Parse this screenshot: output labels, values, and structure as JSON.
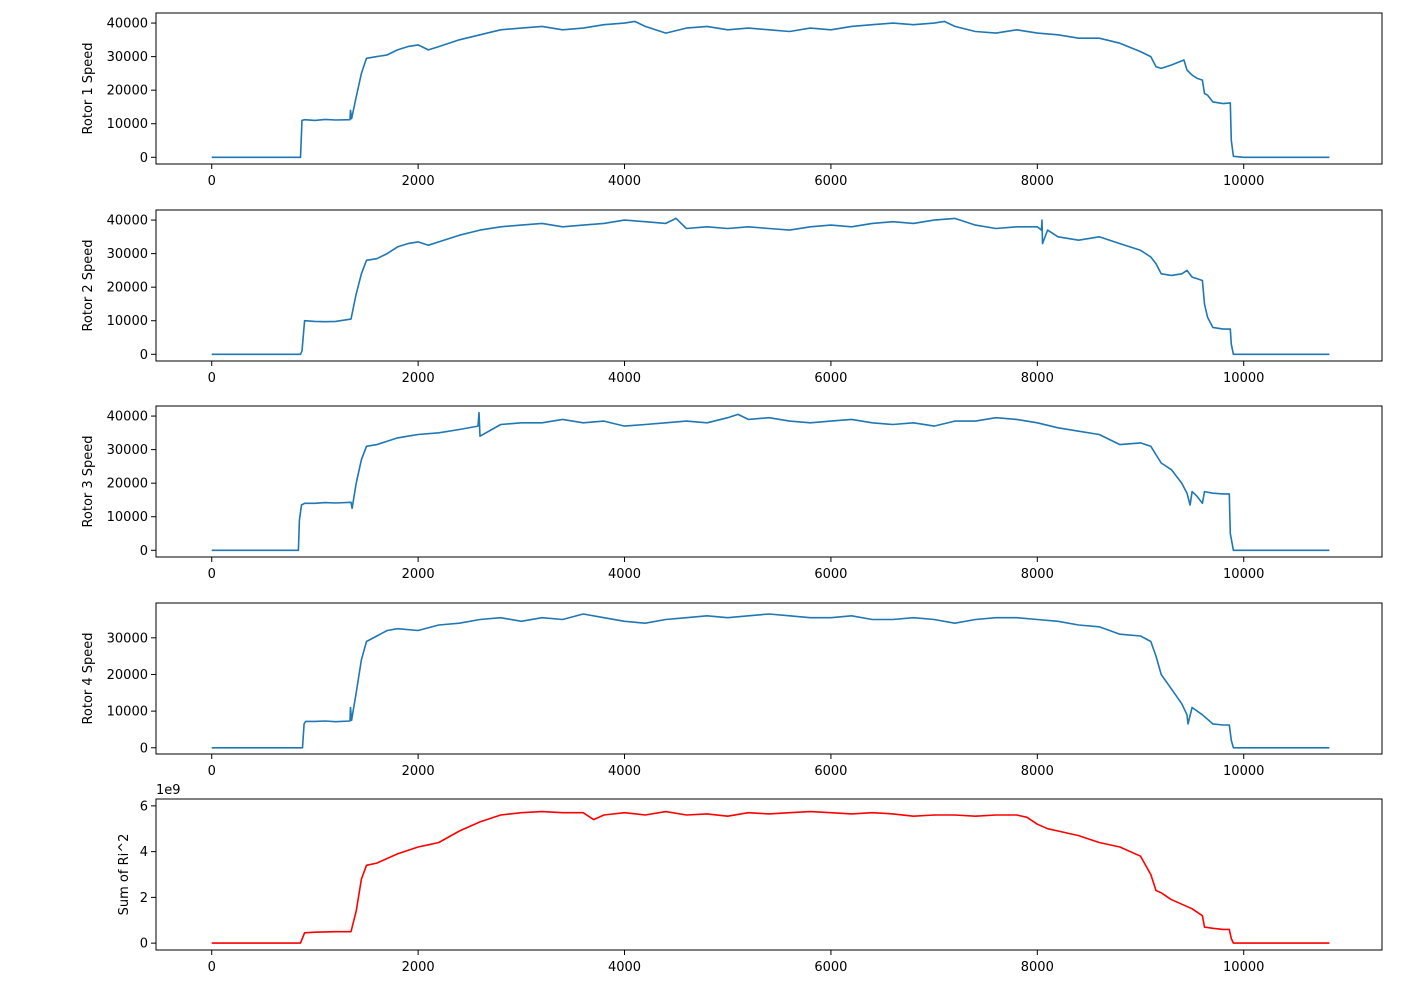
{
  "chart_data": [
    {
      "type": "line",
      "ylabel": "Rotor 1 Speed",
      "color": "#1f77b4",
      "xlim": [
        -540,
        11340
      ],
      "ylim": [
        -2000,
        43000
      ],
      "xticks": [
        0,
        2000,
        4000,
        6000,
        8000,
        10000
      ],
      "xtick_labels": [
        "0",
        "2000",
        "4000",
        "6000",
        "8000",
        "10000"
      ],
      "yticks": [
        0,
        10000,
        20000,
        30000,
        40000
      ],
      "ytick_labels": [
        "0",
        "10000",
        "20000",
        "30000",
        "40000"
      ],
      "offset_text": "",
      "series": [
        {
          "x": [
            0,
            860,
            875,
            900,
            1000,
            1100,
            1200,
            1340,
            1345,
            1355,
            1400,
            1450,
            1500,
            1600,
            1700,
            1800,
            1900,
            2000,
            2100,
            2200,
            2400,
            2600,
            2800,
            3000,
            3200,
            3400,
            3600,
            3800,
            4000,
            4100,
            4200,
            4400,
            4600,
            4800,
            5000,
            5200,
            5400,
            5600,
            5800,
            6000,
            6200,
            6400,
            6600,
            6800,
            7000,
            7100,
            7200,
            7400,
            7600,
            7800,
            8000,
            8200,
            8400,
            8600,
            8800,
            9000,
            9100,
            9150,
            9200,
            9300,
            9420,
            9450,
            9500,
            9550,
            9600,
            9620,
            9650,
            9700,
            9800,
            9870,
            9880,
            9900,
            10000,
            10200,
            10500,
            10830
          ],
          "y": [
            0,
            0,
            11000,
            11200,
            11000,
            11300,
            11100,
            11200,
            14000,
            11500,
            18000,
            25000,
            29500,
            30000,
            30500,
            32000,
            33000,
            33500,
            32000,
            33000,
            35000,
            36500,
            38000,
            38500,
            39000,
            38000,
            38500,
            39500,
            40000,
            40500,
            39000,
            37000,
            38500,
            39000,
            38000,
            38500,
            38000,
            37500,
            38500,
            38000,
            39000,
            39500,
            40000,
            39500,
            40000,
            40500,
            39000,
            37500,
            37000,
            38000,
            37000,
            36500,
            35500,
            35500,
            34000,
            31500,
            30000,
            27000,
            26500,
            27500,
            29000,
            26000,
            24500,
            23500,
            23000,
            19000,
            18500,
            16500,
            16000,
            16200,
            5000,
            300,
            0,
            0,
            0,
            0
          ]
        }
      ]
    },
    {
      "type": "line",
      "ylabel": "Rotor 2 Speed",
      "color": "#1f77b4",
      "xlim": [
        -540,
        11340
      ],
      "ylim": [
        -2000,
        43000
      ],
      "xticks": [
        0,
        2000,
        4000,
        6000,
        8000,
        10000
      ],
      "xtick_labels": [
        "0",
        "2000",
        "4000",
        "6000",
        "8000",
        "10000"
      ],
      "yticks": [
        0,
        10000,
        20000,
        30000,
        40000
      ],
      "ytick_labels": [
        "0",
        "10000",
        "20000",
        "30000",
        "40000"
      ],
      "offset_text": "",
      "series": [
        {
          "x": [
            0,
            860,
            875,
            900,
            1000,
            1100,
            1200,
            1350,
            1400,
            1450,
            1500,
            1600,
            1700,
            1800,
            1900,
            2000,
            2100,
            2200,
            2400,
            2600,
            2800,
            3000,
            3200,
            3400,
            3600,
            3800,
            4000,
            4200,
            4400,
            4500,
            4600,
            4800,
            5000,
            5200,
            5400,
            5600,
            5800,
            6000,
            6200,
            6400,
            6600,
            6800,
            7000,
            7200,
            7400,
            7600,
            7800,
            8000,
            8040,
            8045,
            8050,
            8100,
            8200,
            8400,
            8600,
            8800,
            9000,
            9100,
            9150,
            9200,
            9300,
            9400,
            9450,
            9500,
            9550,
            9600,
            9620,
            9650,
            9700,
            9800,
            9870,
            9880,
            9900,
            10000,
            10200,
            10500,
            10830
          ],
          "y": [
            0,
            0,
            1000,
            10000,
            9800,
            9700,
            9800,
            10500,
            18000,
            24000,
            28000,
            28500,
            30000,
            32000,
            33000,
            33500,
            32500,
            33500,
            35500,
            37000,
            38000,
            38500,
            39000,
            38000,
            38500,
            39000,
            40000,
            39500,
            39000,
            40500,
            37500,
            38000,
            37500,
            38000,
            37500,
            37000,
            38000,
            38500,
            38000,
            39000,
            39500,
            39000,
            40000,
            40500,
            38500,
            37500,
            38000,
            38000,
            37000,
            40000,
            33000,
            37000,
            35000,
            34000,
            35000,
            33000,
            31000,
            29000,
            27000,
            24000,
            23500,
            24000,
            25000,
            23000,
            22500,
            22000,
            15000,
            11000,
            8000,
            7500,
            7500,
            3000,
            0,
            0,
            0,
            0,
            0
          ]
        }
      ]
    },
    {
      "type": "line",
      "ylabel": "Rotor 3 Speed",
      "color": "#1f77b4",
      "xlim": [
        -540,
        11340
      ],
      "ylim": [
        -2000,
        43000
      ],
      "xticks": [
        0,
        2000,
        4000,
        6000,
        8000,
        10000
      ],
      "xtick_labels": [
        "0",
        "2000",
        "4000",
        "6000",
        "8000",
        "10000"
      ],
      "yticks": [
        0,
        10000,
        20000,
        30000,
        40000
      ],
      "ytick_labels": [
        "0",
        "10000",
        "20000",
        "30000",
        "40000"
      ],
      "offset_text": "",
      "series": [
        {
          "x": [
            0,
            840,
            850,
            870,
            900,
            1000,
            1100,
            1200,
            1350,
            1360,
            1400,
            1450,
            1500,
            1600,
            1700,
            1800,
            1900,
            2000,
            2200,
            2400,
            2580,
            2590,
            2600,
            2800,
            3000,
            3200,
            3400,
            3600,
            3800,
            4000,
            4200,
            4400,
            4600,
            4800,
            5000,
            5100,
            5200,
            5400,
            5600,
            5800,
            6000,
            6200,
            6400,
            6600,
            6800,
            7000,
            7200,
            7400,
            7600,
            7800,
            8000,
            8200,
            8400,
            8600,
            8800,
            9000,
            9100,
            9200,
            9300,
            9400,
            9450,
            9480,
            9500,
            9550,
            9600,
            9620,
            9700,
            9800,
            9860,
            9870,
            9900,
            10000,
            10200,
            10500,
            10830
          ],
          "y": [
            0,
            0,
            9000,
            13500,
            14000,
            14000,
            14200,
            14100,
            14300,
            12500,
            20000,
            27000,
            31000,
            31500,
            32500,
            33500,
            34000,
            34500,
            35000,
            36000,
            37000,
            41000,
            34000,
            37500,
            38000,
            38000,
            39000,
            38000,
            38500,
            37000,
            37500,
            38000,
            38500,
            38000,
            39500,
            40500,
            39000,
            39500,
            38500,
            38000,
            38500,
            39000,
            38000,
            37500,
            38000,
            37000,
            38500,
            38500,
            39500,
            39000,
            38000,
            36500,
            35500,
            34500,
            31500,
            32000,
            31000,
            26000,
            24000,
            20000,
            17000,
            13500,
            17500,
            16000,
            14000,
            17500,
            17000,
            16800,
            16800,
            5000,
            0,
            0,
            0,
            0,
            0
          ]
        }
      ]
    },
    {
      "type": "line",
      "ylabel": "Rotor 4 Speed",
      "color": "#1f77b4",
      "xlim": [
        -540,
        11340
      ],
      "ylim": [
        -1700,
        39500
      ],
      "xticks": [
        0,
        2000,
        4000,
        6000,
        8000,
        10000
      ],
      "xtick_labels": [
        "0",
        "2000",
        "4000",
        "6000",
        "8000",
        "10000"
      ],
      "yticks": [
        0,
        10000,
        20000,
        30000
      ],
      "ytick_labels": [
        "0",
        "10000",
        "20000",
        "30000"
      ],
      "offset_text": "",
      "series": [
        {
          "x": [
            0,
            880,
            895,
            910,
            1000,
            1100,
            1200,
            1340,
            1345,
            1355,
            1400,
            1450,
            1500,
            1600,
            1700,
            1800,
            2000,
            2200,
            2400,
            2600,
            2800,
            3000,
            3200,
            3400,
            3600,
            3800,
            4000,
            4200,
            4400,
            4600,
            4800,
            5000,
            5200,
            5400,
            5600,
            5800,
            6000,
            6200,
            6400,
            6600,
            6800,
            7000,
            7200,
            7400,
            7600,
            7800,
            8000,
            8200,
            8400,
            8600,
            8800,
            9000,
            9100,
            9150,
            9200,
            9300,
            9400,
            9450,
            9460,
            9500,
            9600,
            9700,
            9800,
            9860,
            9880,
            9900,
            10000,
            10200,
            10500,
            10830
          ],
          "y": [
            0,
            0,
            6500,
            7200,
            7200,
            7300,
            7100,
            7300,
            11000,
            7500,
            15000,
            24000,
            29000,
            30500,
            32000,
            32500,
            32000,
            33500,
            34000,
            35000,
            35500,
            34500,
            35500,
            35000,
            36500,
            35500,
            34500,
            34000,
            35000,
            35500,
            36000,
            35500,
            36000,
            36500,
            36000,
            35500,
            35500,
            36000,
            35000,
            35000,
            35500,
            35000,
            34000,
            35000,
            35500,
            35500,
            35000,
            34500,
            33500,
            33000,
            31000,
            30500,
            29000,
            25000,
            20000,
            16000,
            12000,
            9000,
            6500,
            11000,
            9000,
            6500,
            6200,
            6200,
            2000,
            0,
            0,
            0,
            0,
            0
          ]
        }
      ]
    },
    {
      "type": "line",
      "ylabel": "Sum of Ri^2",
      "color": "#ff0000",
      "xlim": [
        -540,
        11340
      ],
      "ylim": [
        -0.3,
        6.3
      ],
      "xticks": [
        0,
        2000,
        4000,
        6000,
        8000,
        10000
      ],
      "xtick_labels": [
        "0",
        "2000",
        "4000",
        "6000",
        "8000",
        "10000"
      ],
      "yticks": [
        0,
        2,
        4,
        6
      ],
      "ytick_labels": [
        "0",
        "2",
        "4",
        "6"
      ],
      "offset_text": "1e9",
      "series": [
        {
          "x": [
            0,
            860,
            900,
            1000,
            1200,
            1350,
            1400,
            1450,
            1500,
            1600,
            1800,
            2000,
            2100,
            2200,
            2400,
            2600,
            2800,
            3000,
            3200,
            3400,
            3600,
            3700,
            3800,
            4000,
            4200,
            4400,
            4600,
            4800,
            5000,
            5200,
            5400,
            5600,
            5800,
            6000,
            6200,
            6400,
            6600,
            6800,
            7000,
            7200,
            7400,
            7600,
            7800,
            7900,
            8000,
            8100,
            8200,
            8400,
            8600,
            8800,
            9000,
            9100,
            9150,
            9200,
            9300,
            9400,
            9500,
            9600,
            9620,
            9700,
            9800,
            9860,
            9880,
            9900,
            10000,
            10200,
            10500,
            10830
          ],
          "y": [
            0,
            0,
            0.45,
            0.48,
            0.5,
            0.5,
            1.4,
            2.8,
            3.4,
            3.5,
            3.9,
            4.2,
            4.3,
            4.4,
            4.9,
            5.3,
            5.6,
            5.7,
            5.75,
            5.7,
            5.7,
            5.4,
            5.6,
            5.7,
            5.6,
            5.75,
            5.6,
            5.65,
            5.55,
            5.7,
            5.65,
            5.7,
            5.75,
            5.7,
            5.65,
            5.7,
            5.65,
            5.55,
            5.6,
            5.6,
            5.55,
            5.6,
            5.6,
            5.5,
            5.2,
            5.0,
            4.9,
            4.7,
            4.4,
            4.2,
            3.8,
            3.0,
            2.3,
            2.2,
            1.9,
            1.7,
            1.5,
            1.2,
            0.7,
            0.65,
            0.6,
            0.6,
            0.2,
            0,
            0,
            0,
            0,
            0
          ]
        }
      ]
    }
  ]
}
